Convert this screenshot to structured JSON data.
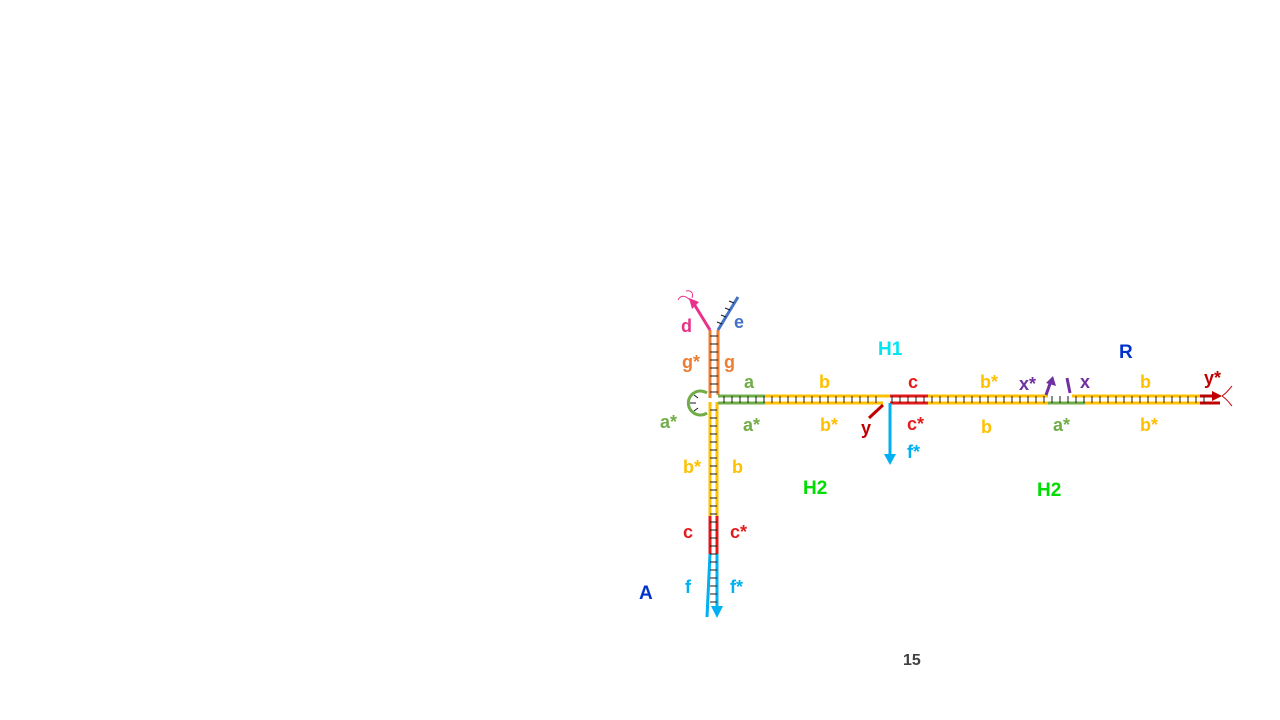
{
  "colors": {
    "green": "#70AD47",
    "yellow": "#FFC000",
    "red": "#E41B1B",
    "darkred": "#C00000",
    "cyan": "#00B0F0",
    "orange": "#ED7D31",
    "pink": "#E8318A",
    "steelblue": "#4472C4",
    "purple": "#7030A0",
    "blue": "#0033CC",
    "lime": "#00DD00",
    "aqua": "#00E5F0",
    "tick": "#1a1a1a",
    "pagenum": "#404040"
  },
  "complexes": {
    "A": "A",
    "H1": "H1",
    "H2_left": "H2",
    "H2_right": "H2",
    "R": "R"
  },
  "domains": {
    "d": "d",
    "e": "e",
    "g_star": "g*",
    "g": "g",
    "a_star_loop": "a*",
    "b_star_vert": "b*",
    "b_vert": "b",
    "c_vert": "c",
    "c_star_vert": "c*",
    "f_vert": "f",
    "f_star_vert": "f*",
    "a_top": "a",
    "a_star_bot": "a*",
    "b_top": "b",
    "b_star_bot": "b*",
    "c_top": "c",
    "c_star_bot": "c*",
    "y": "y",
    "f_star_drop": "f*",
    "b_star_top2": "b*",
    "b_bot2": "b",
    "x_star": "x*",
    "x": "x",
    "a_star_bot2": "a*",
    "b_top3": "b",
    "b_star_bot3": "b*",
    "y_star": "y*"
  },
  "page_number": "15"
}
